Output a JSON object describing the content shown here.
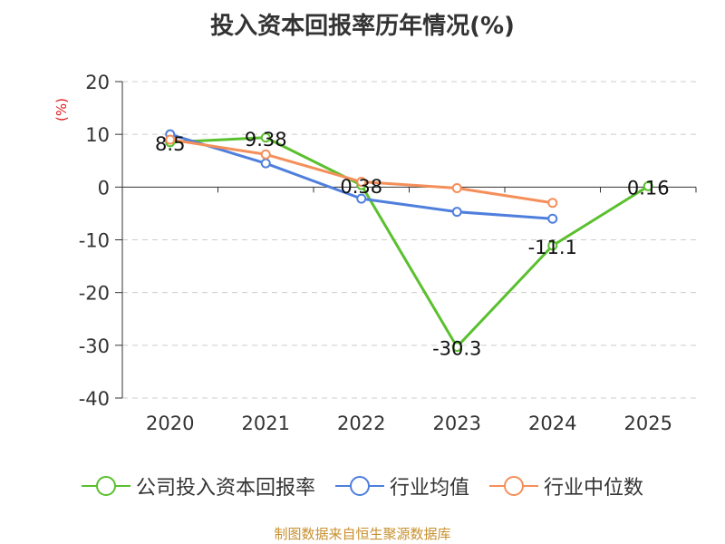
{
  "chart_data": {
    "type": "line",
    "title": "投入资本回报率历年情况(%)",
    "ylabel": "(%)",
    "xlabel": "",
    "categories": [
      "2020",
      "2021",
      "2022",
      "2023",
      "2024",
      "2025"
    ],
    "ylim": [
      -40,
      20
    ],
    "yticks": [
      20,
      10,
      0,
      -10,
      -20,
      -30,
      -40
    ],
    "grid": true,
    "legend_position": "bottom",
    "series": [
      {
        "name": "公司投入资本回报率",
        "color": "#5ac02e",
        "values": [
          8.5,
          9.38,
          0.38,
          -30.3,
          -11.1,
          0.16
        ],
        "labels": [
          "8.5",
          "9.38",
          "0.38",
          "-30.3",
          "-11.1",
          "0.16"
        ]
      },
      {
        "name": "行业均值",
        "color": "#4f7fdc",
        "values": [
          10.0,
          4.5,
          -2.2,
          -4.7,
          -6.0,
          null
        ],
        "labels": []
      },
      {
        "name": "行业中位数",
        "color": "#f58f5a",
        "values": [
          9.0,
          6.2,
          1.0,
          -0.2,
          -3.0,
          null
        ],
        "labels": []
      }
    ]
  },
  "source": "制图数据来自恒生聚源数据库"
}
